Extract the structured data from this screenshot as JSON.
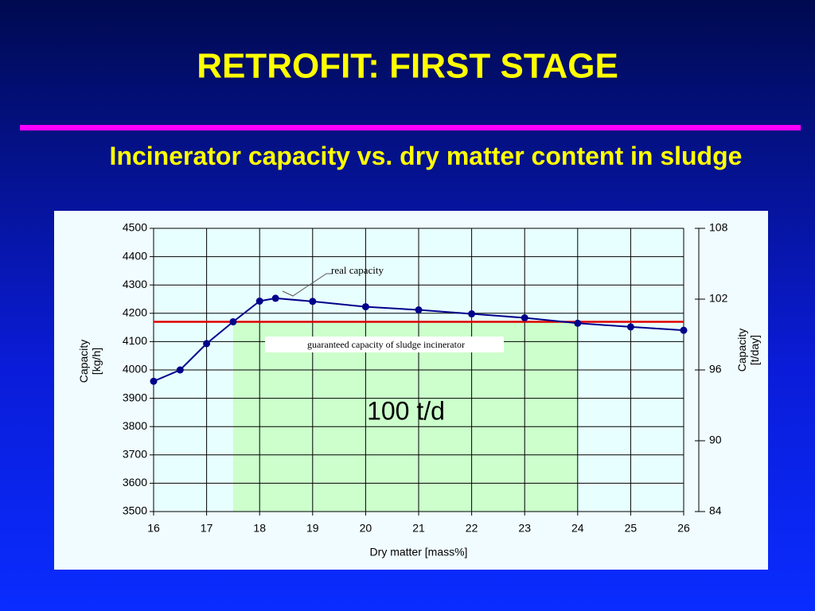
{
  "title": "RETROFIT: FIRST STAGE",
  "subtitle": "Incinerator capacity vs. dry matter content in sludge",
  "chart_data": {
    "type": "line",
    "x_label": "Dry matter [mass%]",
    "y_label": "Capacity [kg/h]",
    "y2_label": "Capacity [t/day]",
    "x": [
      16,
      16.5,
      17,
      17.5,
      18,
      18.3,
      19,
      20,
      21,
      22,
      23,
      24,
      25,
      26
    ],
    "series": [
      {
        "name": "real capacity",
        "color": "#00008b",
        "values": [
          3960,
          4000,
          4093,
          4170,
          4243,
          4253,
          4242,
          4223,
          4212,
          4198,
          4184,
          4165,
          4152,
          4140
        ]
      }
    ],
    "guaranteed": {
      "label": "guaranteed capacity of sludge incinerator",
      "value": 4170,
      "color": "#e00000",
      "x_range": [
        17.5,
        24
      ],
      "fill": "#ccffcc",
      "note": "100 t/d"
    },
    "xlim": [
      16,
      26
    ],
    "xticks": [
      16,
      17,
      18,
      19,
      20,
      21,
      22,
      23,
      24,
      25,
      26
    ],
    "ylim": [
      3500,
      4500
    ],
    "yticks": [
      3500,
      3600,
      3700,
      3800,
      3900,
      4000,
      4100,
      4200,
      4300,
      4400,
      4500
    ],
    "y2lim": [
      84,
      108
    ],
    "y2ticks": [
      84,
      90,
      96,
      102,
      108
    ],
    "grid": true
  }
}
